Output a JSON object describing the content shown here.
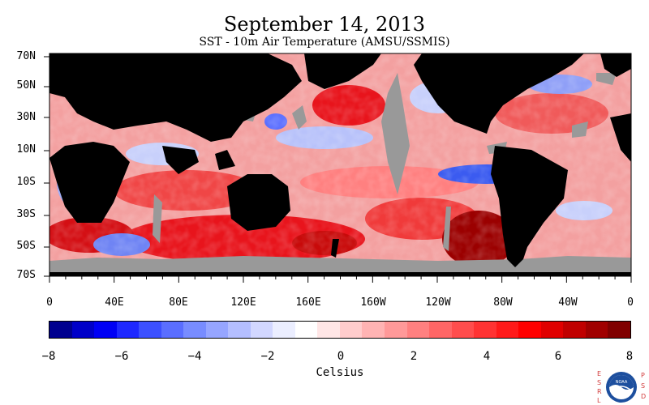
{
  "header": {
    "title": "September 14, 2013",
    "subtitle": "SST - 10m Air Temperature (AMSU/SSMIS)"
  },
  "map": {
    "latitude_labels": [
      "70N",
      "50N",
      "30N",
      "10N",
      "10S",
      "30S",
      "50S",
      "70S"
    ],
    "longitude_labels": [
      "0",
      "40E",
      "80E",
      "120E",
      "160E",
      "160W",
      "120W",
      "80W",
      "40W",
      "0"
    ],
    "colors": {
      "land": "#000000",
      "missing": "#999999",
      "warm": "#e8141c",
      "cool": "#3b5bf0"
    }
  },
  "colorbar": {
    "ticks": [
      "−8",
      "−6",
      "−4",
      "−2",
      "0",
      "2",
      "4",
      "6",
      "8"
    ],
    "label": "Celsius",
    "colors": [
      "#00008f",
      "#0000c8",
      "#0000f5",
      "#1e28ff",
      "#3c50ff",
      "#5a6eff",
      "#788cff",
      "#96a5ff",
      "#b4beff",
      "#d2d7ff",
      "#ebeeff",
      "#ffffff",
      "#ffe6e6",
      "#ffcccc",
      "#ffb3b3",
      "#ff9999",
      "#ff8080",
      "#ff6666",
      "#ff4d4d",
      "#ff3333",
      "#ff1a1a",
      "#ff0000",
      "#e00000",
      "#c00000",
      "#a00000",
      "#800000"
    ]
  },
  "logo": {
    "left_letters": "ESRL",
    "right_letters": "PSD",
    "emblem_text": "NOAA"
  }
}
